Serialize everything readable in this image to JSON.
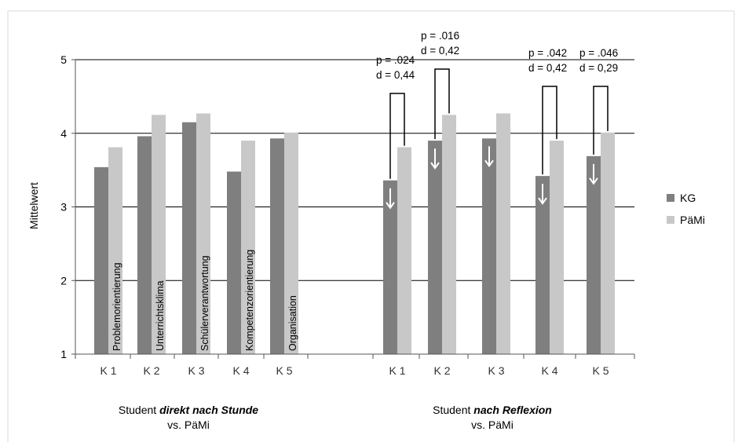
{
  "chart_data": {
    "type": "bar",
    "ylabel": "Mittelwert",
    "ylim": [
      1,
      5
    ],
    "yticks": [
      1,
      2,
      3,
      4,
      5
    ],
    "grid": true,
    "legend": "right",
    "colors": {
      "KG": "#7f7f7f",
      "PäMi": "#c8c8c8"
    },
    "categories": [
      "K 1",
      "K 2",
      "K 3",
      "K 4",
      "K 5",
      "K 1",
      "K 2",
      "K 3",
      "K 4",
      "K 5"
    ],
    "series": [
      {
        "name": "KG",
        "values": [
          3.54,
          3.96,
          4.15,
          3.48,
          3.93,
          3.36,
          3.9,
          3.93,
          3.42,
          3.69
        ]
      },
      {
        "name": "PäMi",
        "values": [
          3.81,
          4.25,
          4.27,
          3.9,
          4.01,
          3.81,
          4.25,
          4.27,
          3.9,
          4.01
        ]
      }
    ],
    "groups": [
      {
        "title_pre": "Student ",
        "title_em": "direkt nach Stunde",
        "title_sub": "vs. PäMi"
      },
      {
        "title_pre": "Student ",
        "title_em": "nach Reflexion",
        "title_sub": "vs. PäMi"
      }
    ],
    "bar_labels": [
      "Problemorientierung",
      "Unterrichtsklima",
      "Schülerverantwortung",
      "Kompetenzorientierung",
      "Organisation"
    ],
    "annotations": [
      {
        "category_index": 5,
        "p": "p = .024",
        "d": "d = 0,44"
      },
      {
        "category_index": 6,
        "p": "p = .016",
        "d": "d = 0,42"
      },
      {
        "category_index": 8,
        "p": "p = .042",
        "d": "d = 0,42"
      },
      {
        "category_index": 9,
        "p": "p = .046",
        "d": "d = 0,29"
      }
    ],
    "arrows_down_on_kg": [
      5,
      6,
      7,
      8,
      9
    ]
  }
}
